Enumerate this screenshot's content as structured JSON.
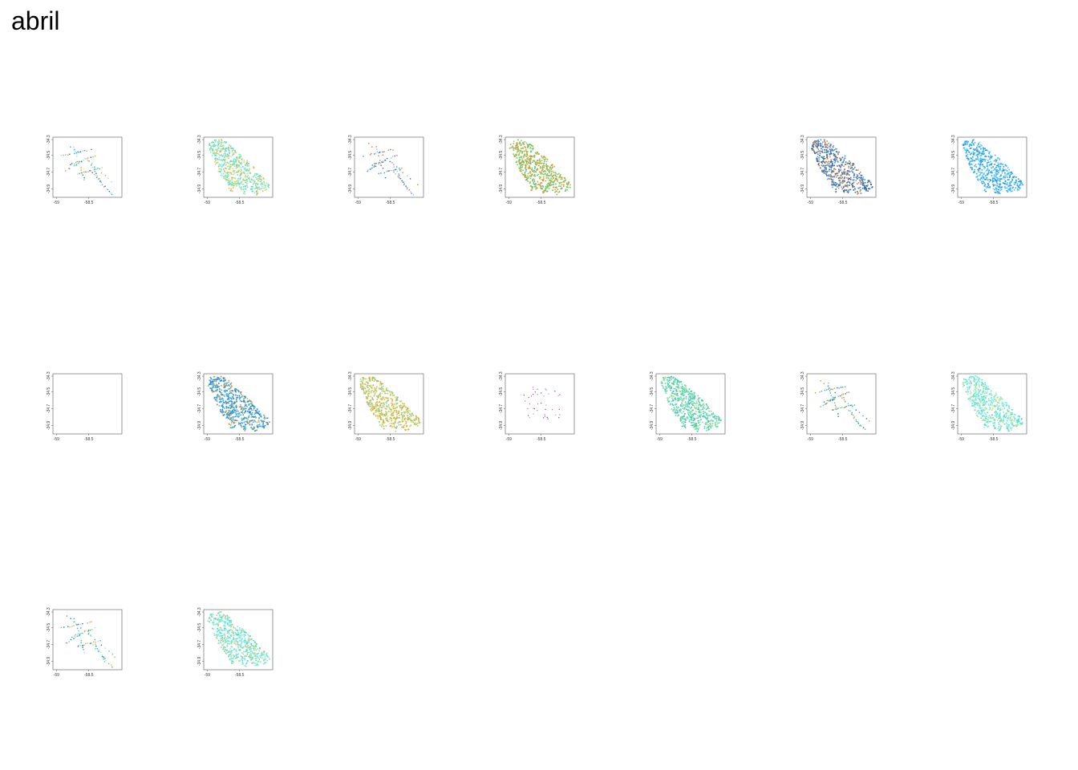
{
  "page_title": "abril",
  "chart_data": {
    "type": "scatter",
    "grid": "3 rows of small maps, up to 7 per row",
    "x_ticks": [
      "-59",
      "-58.5"
    ],
    "y_ticks": [
      "-34.3",
      "-34.5",
      "-34.7",
      "-34.9"
    ],
    "xlim": [
      -59.0,
      -58.0
    ],
    "ylim": [
      -35.0,
      -34.2
    ],
    "panels": [
      {
        "id": 1,
        "row": 0,
        "col": 0,
        "style": "sparse",
        "palette": [
          "#1f78b4",
          "#33a9e0",
          "#e69a2b",
          "#66cc99",
          "#99e0cc"
        ]
      },
      {
        "id": 2,
        "row": 0,
        "col": 1,
        "style": "dense",
        "palette": [
          "#66f0d8",
          "#80f0e0",
          "#e6b84a",
          "#5ad6c8",
          "#c8e070"
        ]
      },
      {
        "id": 3,
        "row": 0,
        "col": 2,
        "style": "sparse",
        "palette": [
          "#1f78b4",
          "#3399dd",
          "#e67a2b",
          "#99c0e0"
        ]
      },
      {
        "id": 4,
        "row": 0,
        "col": 3,
        "style": "dense",
        "palette": [
          "#e6902b",
          "#66cc66",
          "#88d060",
          "#d9a030",
          "#4cc8a0"
        ]
      },
      {
        "id": 5,
        "row": 0,
        "col": 5,
        "style": "dense",
        "palette": [
          "#2a6fb0",
          "#4a86c0",
          "#e6802b",
          "#6fa0d0",
          "#3060a0"
        ]
      },
      {
        "id": 6,
        "row": 0,
        "col": 6,
        "style": "dense",
        "palette": [
          "#33b0f0",
          "#50c0f8",
          "#1890e0",
          "#80d8ff",
          "#20a0e8"
        ]
      },
      {
        "id": 7,
        "row": 1,
        "col": 0,
        "style": "empty",
        "palette": []
      },
      {
        "id": 8,
        "row": 1,
        "col": 1,
        "style": "dense",
        "palette": [
          "#2a9ad8",
          "#3aa8e0",
          "#1e80c8",
          "#e0a030",
          "#50b8e8"
        ]
      },
      {
        "id": 9,
        "row": 1,
        "col": 2,
        "style": "dense",
        "palette": [
          "#d8c050",
          "#a8d060",
          "#e6a030",
          "#88d0a0",
          "#c8e080"
        ]
      },
      {
        "id": 10,
        "row": 1,
        "col": 3,
        "style": "scatter",
        "palette": [
          "#8a3aa8",
          "#c060c0",
          "#4060c0",
          "#d080d0"
        ]
      },
      {
        "id": 11,
        "row": 1,
        "col": 4,
        "style": "dense",
        "palette": [
          "#50d8b0",
          "#70e0c0",
          "#40c0a0",
          "#a0e080",
          "#60d0c0"
        ]
      },
      {
        "id": 12,
        "row": 1,
        "col": 5,
        "style": "sparse",
        "palette": [
          "#1f78b4",
          "#33a9e0",
          "#e6902b",
          "#66cc99"
        ]
      },
      {
        "id": 13,
        "row": 1,
        "col": 6,
        "style": "dense",
        "palette": [
          "#70f0e0",
          "#90f0e8",
          "#60e0d8",
          "#d8e070",
          "#50d8d0"
        ]
      },
      {
        "id": 14,
        "row": 2,
        "col": 0,
        "style": "sparse",
        "palette": [
          "#33a9e0",
          "#e6b030",
          "#66cc99",
          "#1f78b4",
          "#a0e0d0"
        ]
      },
      {
        "id": 15,
        "row": 2,
        "col": 1,
        "style": "dense",
        "palette": [
          "#70f0e0",
          "#60e8d8",
          "#e6c060",
          "#80f0e8",
          "#50d8c8"
        ]
      }
    ]
  }
}
